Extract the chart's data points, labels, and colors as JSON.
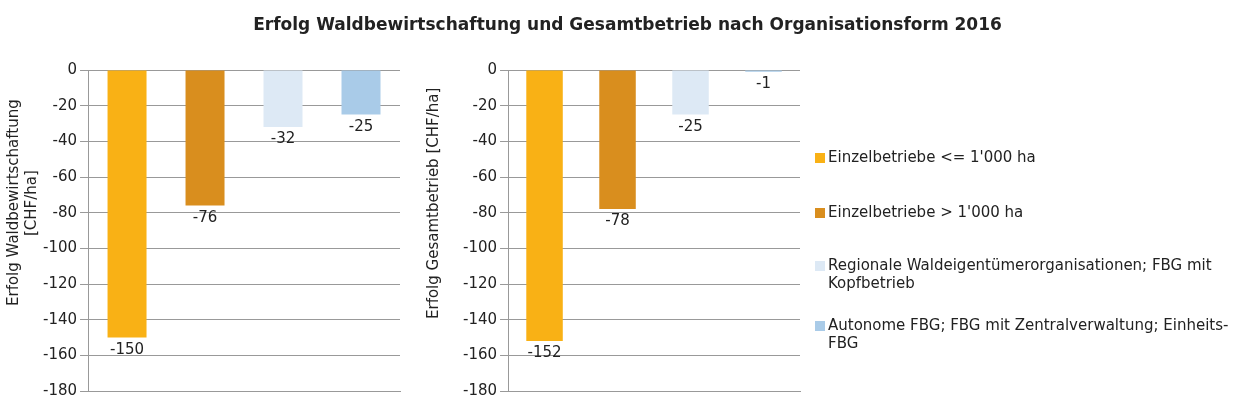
{
  "chart_data": [
    {
      "type": "bar",
      "title": "Erfolg Waldbewirtschaftung und Gesamtbetrieb nach Organisationsform 2016",
      "ylabel": "Erfolg Waldbewirtschaftung [CHF/ha]",
      "categories": [
        null
      ],
      "series": [
        {
          "color": "#f9b115",
          "values": [
            -150
          ]
        },
        {
          "color": "#d98e1e",
          "values": [
            -76
          ]
        },
        {
          "color": "#dde9f5",
          "values": [
            -32
          ]
        },
        {
          "color": "#a9cbe8",
          "values": [
            -25
          ]
        }
      ],
      "ylim": [
        -180,
        0
      ],
      "yticks": [
        -180,
        -160,
        -140,
        -120,
        -100,
        -80,
        -60,
        -40,
        -20,
        0
      ],
      "grid": "y",
      "data_labels": true,
      "legend": false
    },
    {
      "type": "bar",
      "ylabel": "Erfolg Gesamtbetrieb [CHF/ha]",
      "categories": [
        null
      ],
      "series": [
        {
          "name": "Einzelbetriebe <= 1'000 ha",
          "color": "#f9b115",
          "values": [
            -152
          ]
        },
        {
          "name": "Einzelbetriebe > 1'000 ha",
          "color": "#d98e1e",
          "values": [
            -78
          ]
        },
        {
          "name": "Regionale Waldeigentümerorganisationen; FBG mit Kopfbetrieb",
          "color": "#dde9f5",
          "values": [
            -25
          ]
        },
        {
          "name": "Autonome FBG; FBG mit Zentralverwaltung; Einheits-FBG",
          "color": "#a9cbe8",
          "values": [
            -1
          ]
        }
      ],
      "ylim": [
        -180,
        0
      ],
      "yticks": [
        -180,
        -160,
        -140,
        -120,
        -100,
        -80,
        -60,
        -40,
        -20,
        0
      ],
      "grid": "y",
      "data_labels": true,
      "legend": "right"
    }
  ]
}
